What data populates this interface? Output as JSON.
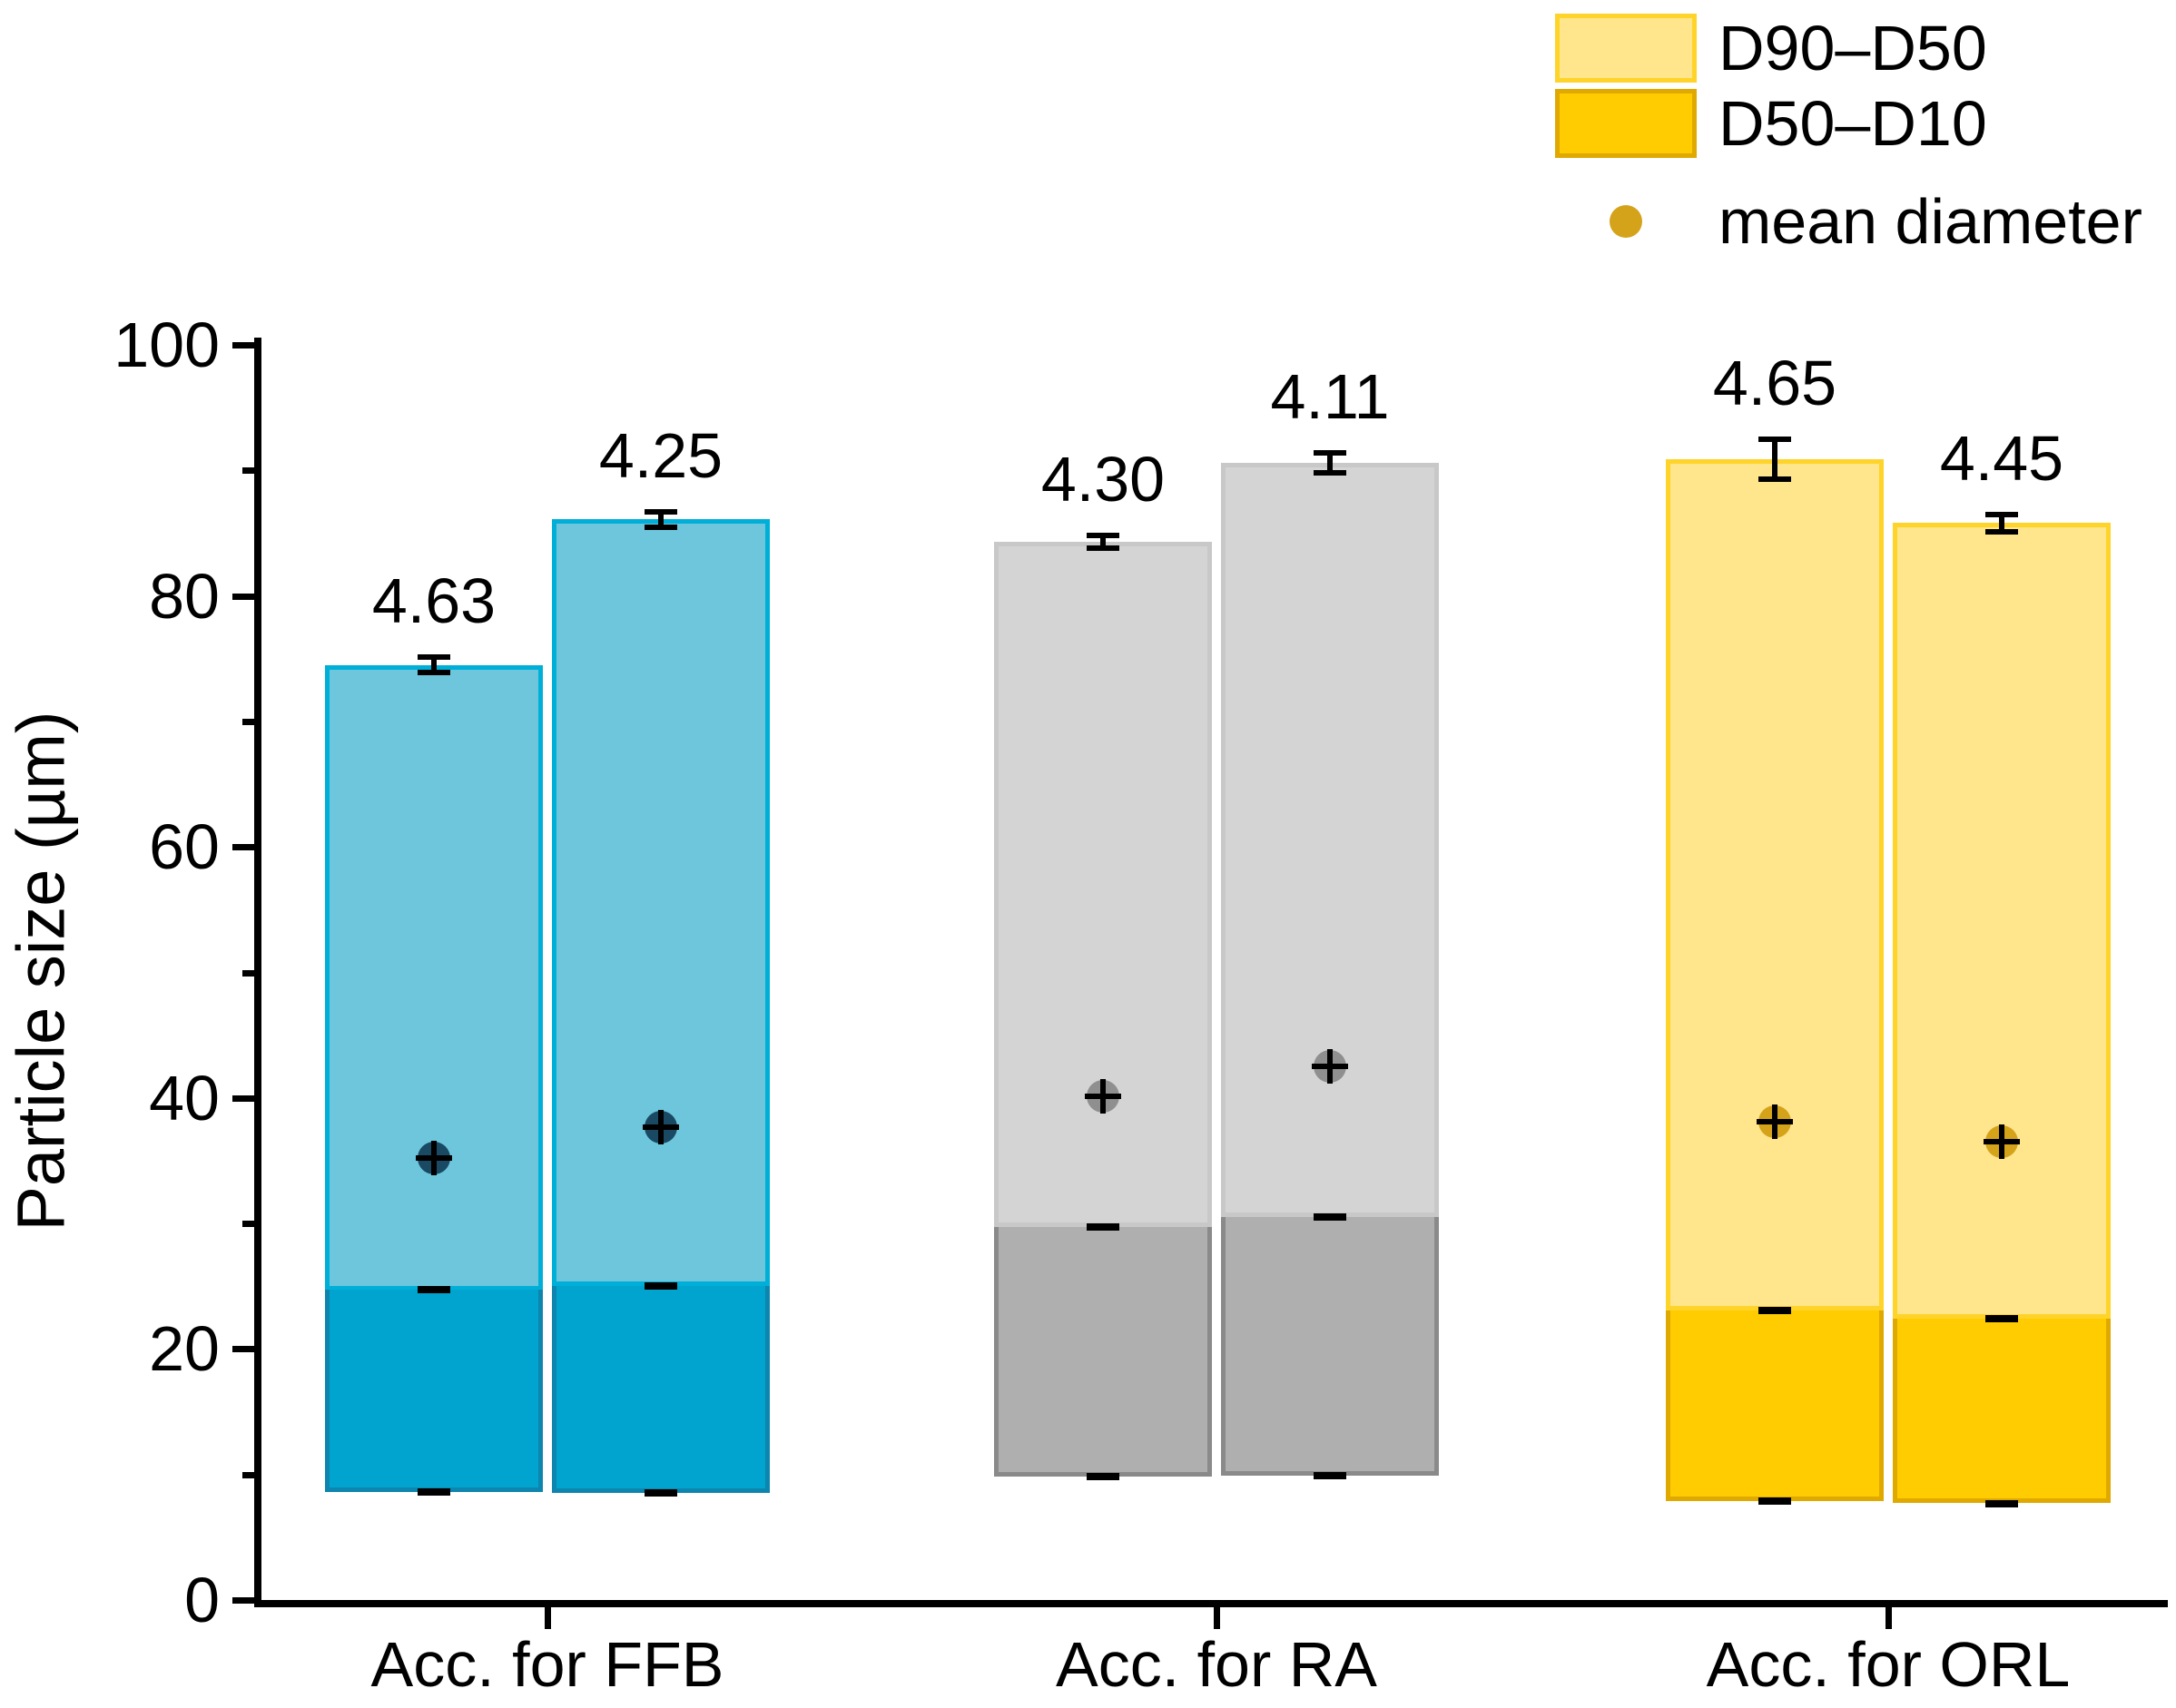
{
  "figure": {
    "background": "#FFFFFF"
  },
  "chart_data": {
    "type": "bar",
    "subtype": "stacked-floating-range-bars",
    "title": "",
    "xlabel": "",
    "ylabel": "Particle size (µm)",
    "ylim": [
      0,
      100
    ],
    "yticks": [
      0,
      20,
      40,
      60,
      80,
      100
    ],
    "yticks_minor": [
      10,
      30,
      50,
      70,
      90
    ],
    "grid": "off",
    "legend": {
      "position": "top-right",
      "entries": [
        {
          "label": "D90–D50",
          "marker": "light-swatch"
        },
        {
          "label": "D50–D10",
          "marker": "dark-swatch"
        },
        {
          "label": "mean diameter",
          "marker": "dot"
        }
      ]
    },
    "categories": [
      "Acc. for FFB",
      "Acc. for RA",
      "Acc. for ORL"
    ],
    "groups": [
      {
        "label": "Acc. for FFB",
        "scheme": "blue",
        "bars": [
          {
            "d10": 8.6,
            "d50": 24.7,
            "d90": 74.5,
            "d90_err": 0.6,
            "mean": 35.2,
            "value_label": "4.63"
          },
          {
            "d10": 8.5,
            "d50": 25.0,
            "d90": 86.1,
            "d90_err": 0.6,
            "mean": 37.7,
            "value_label": "4.25"
          }
        ]
      },
      {
        "label": "Acc. for RA",
        "scheme": "gray",
        "bars": [
          {
            "d10": 9.8,
            "d50": 29.7,
            "d90": 84.3,
            "d90_err": 0.5,
            "mean": 40.1,
            "value_label": "4.30"
          },
          {
            "d10": 9.9,
            "d50": 30.5,
            "d90": 90.6,
            "d90_err": 0.8,
            "mean": 42.5,
            "value_label": "4.11"
          }
        ]
      },
      {
        "label": "Acc. for ORL",
        "scheme": "yellow",
        "bars": [
          {
            "d10": 7.9,
            "d50": 23.1,
            "d90": 90.9,
            "d90_err": 1.6,
            "mean": 38.1,
            "value_label": "4.65"
          },
          {
            "d10": 7.7,
            "d50": 22.4,
            "d90": 85.8,
            "d90_err": 0.7,
            "mean": 36.5,
            "value_label": "4.45"
          }
        ]
      }
    ],
    "colors": {
      "axis": "#000000",
      "text": "#000000",
      "error_bar": "#000000",
      "legend_scheme": "yellow",
      "schemes": {
        "blue": {
          "light": "#6EC6DD",
          "light_border": "#00AFD8",
          "dark": "#00A4CE",
          "dark_border": "#0E85AE",
          "dot": "#1A4A63"
        },
        "gray": {
          "light": "#D4D4D4",
          "light_border": "#C8C8C8",
          "dark": "#AFAFAF",
          "dark_border": "#8A8A8A",
          "dot": "#8F8F8F"
        },
        "yellow": {
          "light": "#FFE58C",
          "light_border": "#FFD42A",
          "dark": "#FFCC02",
          "dark_border": "#DFA900",
          "dot": "#D4A31A"
        }
      }
    }
  }
}
